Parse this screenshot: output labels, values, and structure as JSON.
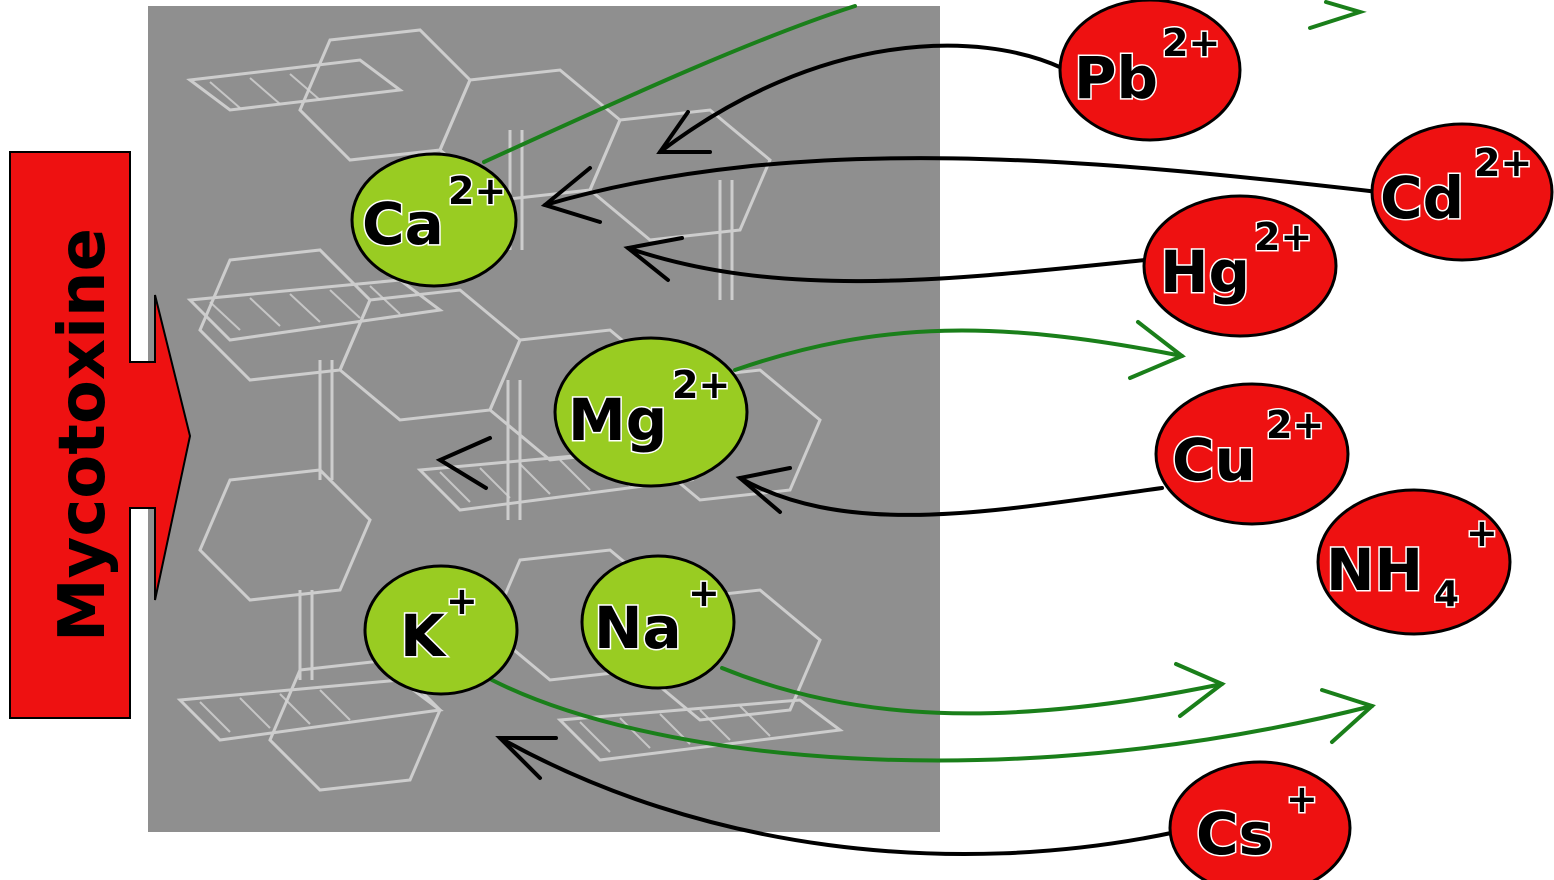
{
  "mycotoxin_label": "Mycotoxine",
  "colors": {
    "framework_bg": "#8f8f8f",
    "framework_lines": "#d4d4d4",
    "outgoing_ion_fill": "#99cc22",
    "incoming_ion_fill": "#ee1111",
    "outgoing_arrow": "#1a7f1a",
    "incoming_arrow": "#000000",
    "mycotoxin_arrow": "#ee1111"
  },
  "outgoing_ions": {
    "ca": {
      "symbol": "Ca",
      "charge": "2+"
    },
    "mg": {
      "symbol": "Mg",
      "charge": "2+"
    },
    "k": {
      "symbol": "K",
      "charge": "+"
    },
    "na": {
      "symbol": "Na",
      "charge": "+"
    }
  },
  "incoming_ions": {
    "pb": {
      "symbol": "Pb",
      "charge": "2+"
    },
    "cd": {
      "symbol": "Cd",
      "charge": "2+"
    },
    "hg": {
      "symbol": "Hg",
      "charge": "2+"
    },
    "cu": {
      "symbol": "Cu",
      "charge": "2+"
    },
    "nh4": {
      "symbol": "NH",
      "subscript": "4",
      "charge": "+"
    },
    "cs": {
      "symbol": "Cs",
      "charge": "+"
    }
  }
}
